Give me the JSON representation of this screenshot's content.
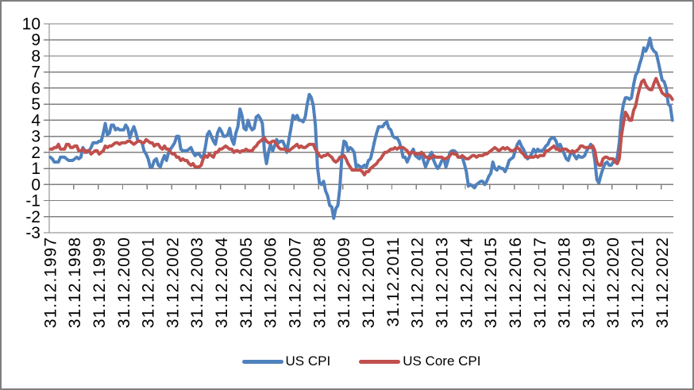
{
  "chart_data": {
    "type": "line",
    "title": "",
    "legend_position": "bottom",
    "grid": "horizontal",
    "colors": {
      "grid": "#808080",
      "axis": "#808080",
      "frame_border": "#7f7f7f",
      "text": "#000000"
    },
    "y_axis": {
      "min": -3,
      "max": 10,
      "step": 1,
      "tick_labels": [
        "10",
        "9",
        "8",
        "7",
        "6",
        "5",
        "4",
        "3",
        "2",
        "1",
        "0",
        "-1",
        "-2",
        "-3"
      ]
    },
    "x_axis": {
      "tick_labels": [
        "31.12.1997",
        "31.12.1998",
        "31.12.1999",
        "31.12.2000",
        "31.12.2001",
        "31.12.2002",
        "31.12.2003",
        "31.12.2004",
        "31.12.2005",
        "31.12.2006",
        "31.12.2007",
        "31.12.2008",
        "31.12.2009",
        "31.12.2010",
        "31.12.2011",
        "31.12.2012",
        "31.12.2013",
        "31.12.2014",
        "31.12.2015",
        "31.12.2016",
        "31.12.2017",
        "31.12.2018",
        "31.12.2019",
        "31.12.2020",
        "31.12.2021",
        "31.12.2022"
      ],
      "points_per_tick": 12,
      "label_rotation_deg": -90
    },
    "series": [
      {
        "name": "US CPI",
        "color": "#4F81BD",
        "values": [
          1.7,
          1.6,
          1.4,
          1.4,
          1.4,
          1.7,
          1.7,
          1.7,
          1.6,
          1.5,
          1.5,
          1.5,
          1.6,
          1.7,
          1.6,
          1.7,
          2.3,
          2.1,
          2.0,
          2.1,
          2.3,
          2.6,
          2.6,
          2.6,
          2.7,
          2.7,
          3.2,
          3.8,
          3.1,
          3.2,
          3.7,
          3.7,
          3.4,
          3.5,
          3.4,
          3.4,
          3.4,
          3.7,
          3.5,
          2.9,
          3.3,
          3.6,
          3.2,
          2.7,
          2.7,
          2.6,
          2.1,
          1.9,
          1.6,
          1.1,
          1.1,
          1.5,
          1.6,
          1.2,
          1.1,
          1.5,
          1.8,
          1.5,
          2.0,
          2.2,
          2.4,
          2.6,
          3.0,
          3.0,
          2.2,
          2.1,
          2.1,
          2.1,
          2.2,
          2.3,
          2.0,
          1.8,
          1.9,
          1.9,
          1.7,
          1.7,
          2.3,
          3.1,
          3.3,
          3.0,
          2.7,
          2.5,
          3.2,
          3.5,
          3.3,
          3.0,
          3.0,
          3.1,
          3.5,
          2.8,
          2.5,
          3.2,
          3.6,
          4.7,
          4.3,
          3.5,
          3.4,
          4.0,
          3.6,
          3.4,
          3.5,
          4.2,
          4.3,
          4.1,
          3.8,
          2.1,
          1.3,
          2.0,
          2.5,
          2.1,
          2.4,
          2.8,
          2.6,
          2.7,
          2.7,
          2.4,
          2.0,
          2.8,
          3.5,
          4.3,
          4.1,
          4.3,
          4.0,
          4.0,
          3.9,
          4.2,
          5.0,
          5.6,
          5.4,
          4.9,
          3.7,
          1.1,
          0.1,
          0.0,
          0.2,
          -0.4,
          -0.7,
          -1.3,
          -1.4,
          -2.1,
          -1.5,
          -1.3,
          -0.2,
          1.8,
          2.7,
          2.6,
          2.1,
          2.3,
          2.2,
          2.0,
          1.1,
          1.2,
          1.1,
          1.1,
          1.2,
          1.1,
          1.5,
          1.6,
          2.1,
          2.7,
          3.2,
          3.6,
          3.6,
          3.6,
          3.8,
          3.9,
          3.5,
          3.4,
          3.0,
          2.9,
          2.9,
          2.7,
          2.3,
          1.7,
          1.7,
          1.4,
          1.7,
          2.0,
          2.2,
          1.8,
          1.7,
          1.6,
          2.0,
          1.5,
          1.1,
          1.4,
          1.8,
          2.0,
          1.5,
          1.2,
          1.0,
          1.2,
          1.5,
          1.6,
          1.1,
          1.5,
          2.0,
          2.1,
          2.1,
          2.0,
          1.7,
          1.7,
          1.7,
          1.3,
          0.8,
          -0.1,
          0.0,
          -0.1,
          -0.2,
          0.0,
          0.1,
          0.2,
          0.2,
          0.0,
          0.2,
          0.5,
          0.7,
          1.4,
          1.0,
          0.9,
          1.1,
          1.0,
          1.0,
          0.8,
          1.1,
          1.5,
          1.6,
          1.7,
          2.1,
          2.5,
          2.7,
          2.4,
          2.2,
          1.9,
          1.6,
          1.7,
          1.9,
          2.2,
          2.0,
          2.2,
          2.1,
          2.1,
          2.2,
          2.4,
          2.5,
          2.8,
          2.9,
          2.9,
          2.7,
          2.3,
          2.5,
          2.2,
          1.9,
          1.6,
          1.5,
          1.9,
          2.0,
          1.8,
          1.6,
          1.8,
          1.7,
          1.7,
          1.8,
          2.1,
          2.3,
          2.5,
          2.3,
          1.5,
          0.3,
          0.1,
          0.6,
          1.0,
          1.3,
          1.4,
          1.2,
          1.2,
          1.4,
          1.4,
          1.7,
          2.6,
          4.2,
          5.0,
          5.4,
          5.4,
          5.3,
          5.4,
          6.2,
          6.8,
          7.0,
          7.5,
          7.9,
          8.5,
          8.3,
          8.6,
          9.1,
          8.5,
          8.3,
          8.2,
          7.7,
          7.1,
          6.5,
          6.4,
          6.0,
          5.0,
          4.9,
          4.0
        ]
      },
      {
        "name": "US Core CPI",
        "color": "#C0504D",
        "values": [
          2.2,
          2.2,
          2.3,
          2.3,
          2.5,
          2.2,
          2.2,
          2.2,
          2.5,
          2.5,
          2.3,
          2.3,
          2.4,
          2.4,
          2.1,
          2.1,
          2.2,
          2.0,
          2.1,
          2.1,
          1.9,
          2.0,
          2.1,
          2.1,
          1.9,
          2.0,
          2.1,
          2.4,
          2.3,
          2.4,
          2.4,
          2.5,
          2.6,
          2.6,
          2.5,
          2.6,
          2.6,
          2.6,
          2.7,
          2.7,
          2.6,
          2.5,
          2.6,
          2.7,
          2.7,
          2.6,
          2.6,
          2.8,
          2.7,
          2.6,
          2.6,
          2.4,
          2.5,
          2.5,
          2.3,
          2.2,
          2.4,
          2.2,
          2.2,
          2.0,
          1.9,
          1.9,
          1.7,
          1.7,
          1.5,
          1.6,
          1.5,
          1.5,
          1.3,
          1.2,
          1.3,
          1.1,
          1.1,
          1.1,
          1.2,
          1.6,
          1.8,
          1.7,
          1.9,
          1.8,
          1.7,
          2.0,
          2.0,
          2.2,
          2.2,
          2.3,
          2.4,
          2.3,
          2.2,
          2.2,
          2.0,
          2.1,
          2.1,
          2.0,
          2.1,
          2.1,
          2.2,
          2.1,
          2.1,
          2.1,
          2.3,
          2.4,
          2.6,
          2.7,
          2.8,
          2.9,
          2.7,
          2.6,
          2.6,
          2.7,
          2.7,
          2.5,
          2.3,
          2.2,
          2.2,
          2.2,
          2.1,
          2.1,
          2.2,
          2.3,
          2.4,
          2.5,
          2.3,
          2.4,
          2.3,
          2.3,
          2.4,
          2.5,
          2.5,
          2.5,
          2.2,
          2.0,
          1.8,
          1.7,
          1.8,
          1.8,
          1.9,
          1.8,
          1.7,
          1.5,
          1.4,
          1.5,
          1.7,
          1.7,
          1.8,
          1.6,
          1.3,
          1.1,
          0.9,
          0.9,
          0.9,
          0.9,
          0.9,
          0.8,
          0.6,
          0.8,
          0.8,
          1.0,
          1.1,
          1.2,
          1.3,
          1.5,
          1.6,
          1.8,
          2.0,
          2.0,
          2.1,
          2.2,
          2.2,
          2.3,
          2.2,
          2.3,
          2.3,
          2.3,
          2.2,
          2.1,
          1.9,
          2.0,
          2.0,
          1.9,
          1.9,
          1.9,
          2.0,
          1.9,
          1.7,
          1.7,
          1.6,
          1.7,
          1.8,
          1.7,
          1.7,
          1.7,
          1.7,
          1.6,
          1.6,
          1.7,
          1.8,
          2.0,
          1.9,
          1.9,
          1.7,
          1.7,
          1.8,
          1.7,
          1.6,
          1.6,
          1.7,
          1.8,
          1.8,
          1.7,
          1.8,
          1.8,
          1.8,
          1.9,
          1.9,
          2.0,
          2.1,
          2.2,
          2.3,
          2.2,
          2.1,
          2.2,
          2.3,
          2.2,
          2.3,
          2.2,
          2.1,
          2.1,
          2.2,
          2.3,
          2.2,
          2.0,
          1.9,
          1.7,
          1.7,
          1.7,
          1.7,
          1.7,
          1.8,
          1.7,
          1.8,
          1.8,
          1.8,
          2.1,
          2.1,
          2.2,
          2.3,
          2.4,
          2.2,
          2.2,
          2.1,
          2.2,
          2.2,
          2.2,
          2.1,
          2.0,
          2.1,
          2.0,
          2.1,
          2.2,
          2.4,
          2.4,
          2.3,
          2.3,
          2.3,
          2.3,
          2.4,
          2.1,
          1.4,
          1.2,
          1.2,
          1.6,
          1.7,
          1.7,
          1.6,
          1.6,
          1.6,
          1.4,
          1.3,
          1.6,
          3.0,
          3.8,
          4.5,
          4.3,
          4.0,
          4.0,
          4.6,
          4.9,
          5.5,
          6.0,
          6.4,
          6.5,
          6.2,
          6.0,
          5.9,
          5.9,
          6.3,
          6.6,
          6.3,
          6.0,
          5.7,
          5.6,
          5.5,
          5.6,
          5.5,
          5.3
        ]
      }
    ]
  }
}
